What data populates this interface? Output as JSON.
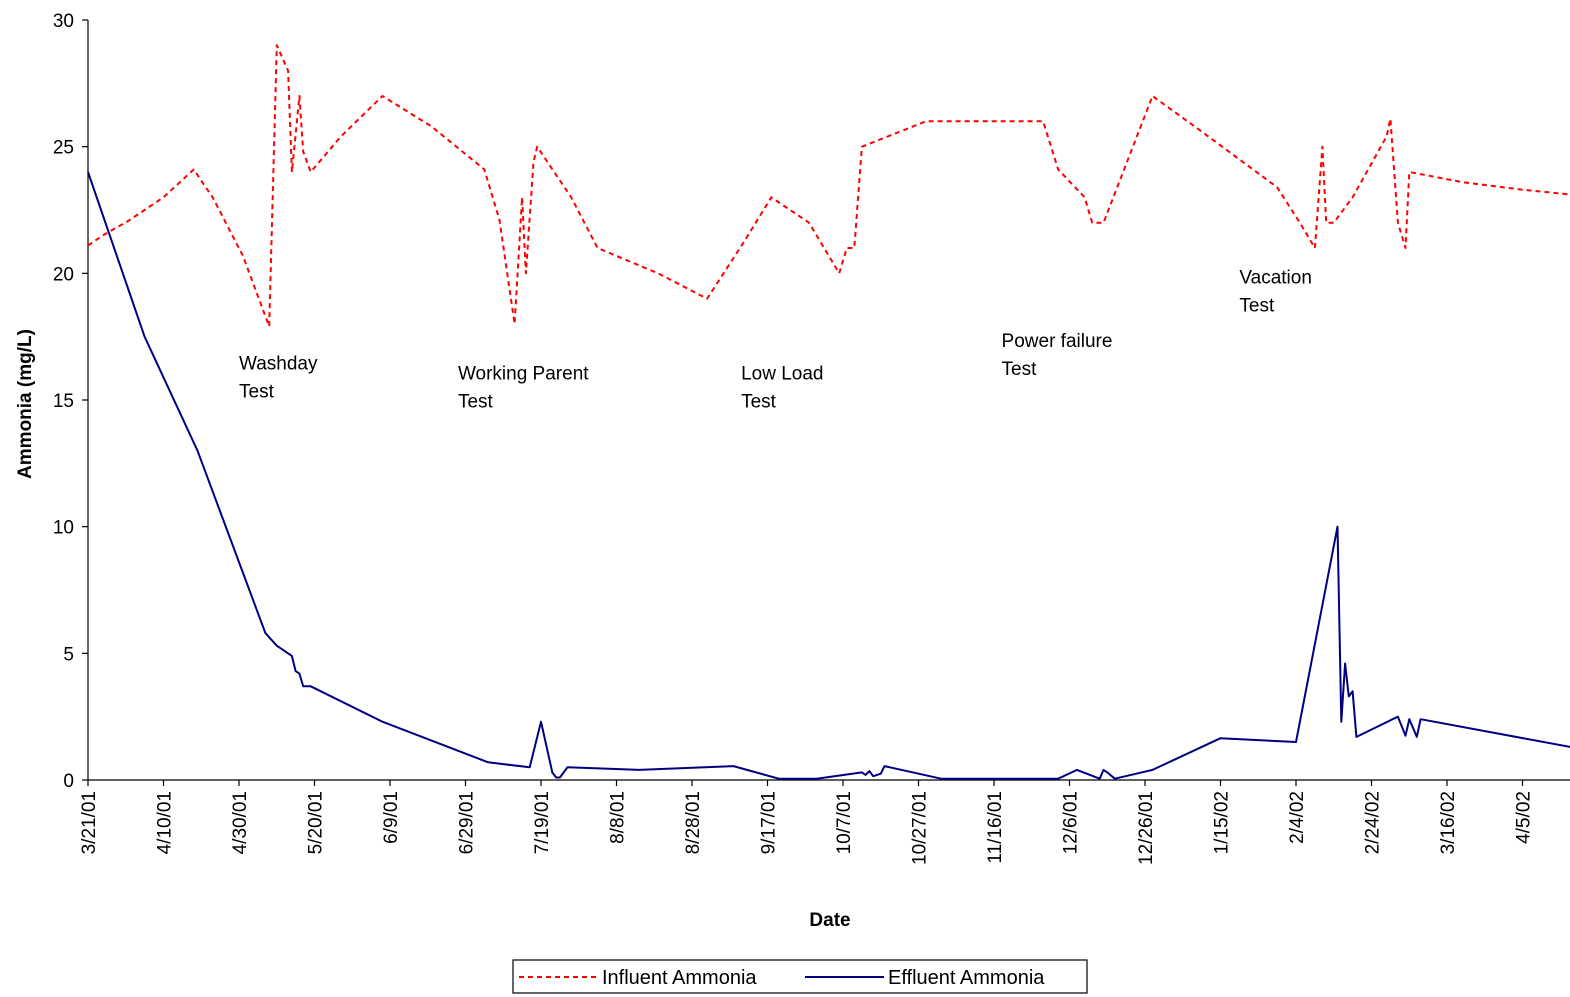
{
  "chart_data": {
    "type": "line",
    "xlabel": "Date",
    "ylabel": "Ammonia (mg/L)",
    "ylim": [
      0,
      30
    ],
    "yticks": [
      0,
      5,
      10,
      15,
      20,
      25,
      30
    ],
    "xlim": [
      "2001-03-21",
      "2002-04-25"
    ],
    "xtick_labels": [
      "3/21/01",
      "4/10/01",
      "4/30/01",
      "5/20/01",
      "6/9/01",
      "6/29/01",
      "7/19/01",
      "8/8/01",
      "8/28/01",
      "9/17/01",
      "10/7/01",
      "10/27/01",
      "11/16/01",
      "12/6/01",
      "12/26/01",
      "1/15/02",
      "2/4/02",
      "2/24/02",
      "3/16/02",
      "4/5/02"
    ],
    "xtick_dates": [
      "2001-03-21",
      "2001-04-10",
      "2001-04-30",
      "2001-05-20",
      "2001-06-09",
      "2001-06-29",
      "2001-07-19",
      "2001-08-08",
      "2001-08-28",
      "2001-09-17",
      "2001-10-07",
      "2001-10-27",
      "2001-11-16",
      "2001-12-06",
      "2001-12-26",
      "2002-01-15",
      "2002-02-04",
      "2002-02-24",
      "2002-03-16",
      "2002-04-05"
    ],
    "grid": false,
    "legend_position": "bottom-center",
    "series": [
      {
        "name": "Influent Ammonia",
        "color": "#ff0000",
        "style": "dashed",
        "points": [
          [
            "2001-03-21",
            21.1
          ],
          [
            "2001-03-25",
            21.5
          ],
          [
            "2001-04-01",
            22.1
          ],
          [
            "2001-04-10",
            23.0
          ],
          [
            "2001-04-18",
            24.1
          ],
          [
            "2001-04-23",
            23.0
          ],
          [
            "2001-05-01",
            20.7
          ],
          [
            "2001-05-08",
            17.9
          ],
          [
            "2001-05-10",
            29.0
          ],
          [
            "2001-05-13",
            28.0
          ],
          [
            "2001-05-14",
            24.0
          ],
          [
            "2001-05-16",
            27.0
          ],
          [
            "2001-05-17",
            24.8
          ],
          [
            "2001-05-19",
            24.0
          ],
          [
            "2001-05-27",
            25.4
          ],
          [
            "2001-06-07",
            27.0
          ],
          [
            "2001-06-20",
            25.8
          ],
          [
            "2001-07-04",
            24.1
          ],
          [
            "2001-07-08",
            22.1
          ],
          [
            "2001-07-12",
            18.0
          ],
          [
            "2001-07-14",
            23.0
          ],
          [
            "2001-07-15",
            20.0
          ],
          [
            "2001-07-17",
            24.4
          ],
          [
            "2001-07-18",
            25.0
          ],
          [
            "2001-07-27",
            23.0
          ],
          [
            "2001-08-03",
            21.0
          ],
          [
            "2001-08-19",
            20.0
          ],
          [
            "2001-09-01",
            19.0
          ],
          [
            "2001-09-11",
            21.3
          ],
          [
            "2001-09-18",
            23.0
          ],
          [
            "2001-09-28",
            22.0
          ],
          [
            "2001-10-06",
            20.0
          ],
          [
            "2001-10-08",
            21.0
          ],
          [
            "2001-10-10",
            21.0
          ],
          [
            "2001-10-12",
            25.0
          ],
          [
            "2001-10-29",
            26.0
          ],
          [
            "2001-11-29",
            26.0
          ],
          [
            "2001-12-03",
            24.1
          ],
          [
            "2001-12-10",
            23.0
          ],
          [
            "2001-12-12",
            22.0
          ],
          [
            "2001-12-15",
            22.0
          ],
          [
            "2001-12-28",
            27.0
          ],
          [
            "2002-01-10",
            25.6
          ],
          [
            "2002-01-30",
            23.4
          ],
          [
            "2002-02-05",
            22.0
          ],
          [
            "2002-02-09",
            21.0
          ],
          [
            "2002-02-11",
            25.0
          ],
          [
            "2002-02-12",
            22.0
          ],
          [
            "2002-02-14",
            22.0
          ],
          [
            "2002-02-19",
            23.0
          ],
          [
            "2002-02-28",
            25.4
          ],
          [
            "2002-03-01",
            26.1
          ],
          [
            "2002-03-03",
            22.0
          ],
          [
            "2002-03-05",
            21.0
          ],
          [
            "2002-03-06",
            24.0
          ],
          [
            "2002-03-20",
            23.6
          ],
          [
            "2002-04-05",
            23.3
          ],
          [
            "2002-04-25",
            23.0
          ]
        ]
      },
      {
        "name": "Effluent Ammonia",
        "color": "#000080",
        "style": "solid",
        "points": [
          [
            "2001-03-21",
            24.0
          ],
          [
            "2001-04-05",
            17.5
          ],
          [
            "2001-04-19",
            13.0
          ],
          [
            "2001-05-07",
            5.8
          ],
          [
            "2001-05-10",
            5.3
          ],
          [
            "2001-05-14",
            4.9
          ],
          [
            "2001-05-15",
            4.3
          ],
          [
            "2001-05-16",
            4.2
          ],
          [
            "2001-05-17",
            3.7
          ],
          [
            "2001-05-19",
            3.7
          ],
          [
            "2001-06-07",
            2.3
          ],
          [
            "2001-07-05",
            0.7
          ],
          [
            "2001-07-16",
            0.5
          ],
          [
            "2001-07-19",
            2.3
          ],
          [
            "2001-07-22",
            0.3
          ],
          [
            "2001-07-23",
            0.1
          ],
          [
            "2001-07-24",
            0.1
          ],
          [
            "2001-07-26",
            0.5
          ],
          [
            "2001-08-14",
            0.4
          ],
          [
            "2001-09-08",
            0.55
          ],
          [
            "2001-09-20",
            0.05
          ],
          [
            "2001-09-30",
            0.05
          ],
          [
            "2001-10-12",
            0.3
          ],
          [
            "2001-10-13",
            0.2
          ],
          [
            "2001-10-14",
            0.35
          ],
          [
            "2001-10-15",
            0.15
          ],
          [
            "2001-10-17",
            0.25
          ],
          [
            "2001-10-18",
            0.55
          ],
          [
            "2001-11-02",
            0.05
          ],
          [
            "2001-12-03",
            0.05
          ],
          [
            "2001-12-08",
            0.4
          ],
          [
            "2001-12-14",
            0.05
          ],
          [
            "2001-12-15",
            0.4
          ],
          [
            "2001-12-16",
            0.3
          ],
          [
            "2001-12-18",
            0.05
          ],
          [
            "2001-12-28",
            0.4
          ],
          [
            "2002-01-15",
            1.65
          ],
          [
            "2002-02-04",
            1.5
          ],
          [
            "2002-02-15",
            10.0
          ],
          [
            "2002-02-16",
            2.3
          ],
          [
            "2002-02-17",
            4.6
          ],
          [
            "2002-02-18",
            3.3
          ],
          [
            "2002-02-19",
            3.5
          ],
          [
            "2002-02-20",
            1.7
          ],
          [
            "2002-03-03",
            2.5
          ],
          [
            "2002-03-05",
            1.75
          ],
          [
            "2002-03-06",
            2.4
          ],
          [
            "2002-03-08",
            1.7
          ],
          [
            "2002-03-09",
            2.4
          ],
          [
            "2002-04-25",
            1.1
          ]
        ]
      }
    ],
    "annotations": [
      {
        "lines": [
          "Washday",
          "Test"
        ],
        "date": "2001-04-30",
        "y": 16.2
      },
      {
        "lines": [
          "Working Parent",
          "Test"
        ],
        "date": "2001-06-27",
        "y": 15.8
      },
      {
        "lines": [
          "Low  Load",
          "Test"
        ],
        "date": "2001-09-10",
        "y": 15.8
      },
      {
        "lines": [
          "Power failure",
          "Test"
        ],
        "date": "2001-11-18",
        "y": 17.1
      },
      {
        "lines": [
          "Vacation",
          "Test"
        ],
        "date": "2002-01-20",
        "y": 19.6
      }
    ]
  }
}
